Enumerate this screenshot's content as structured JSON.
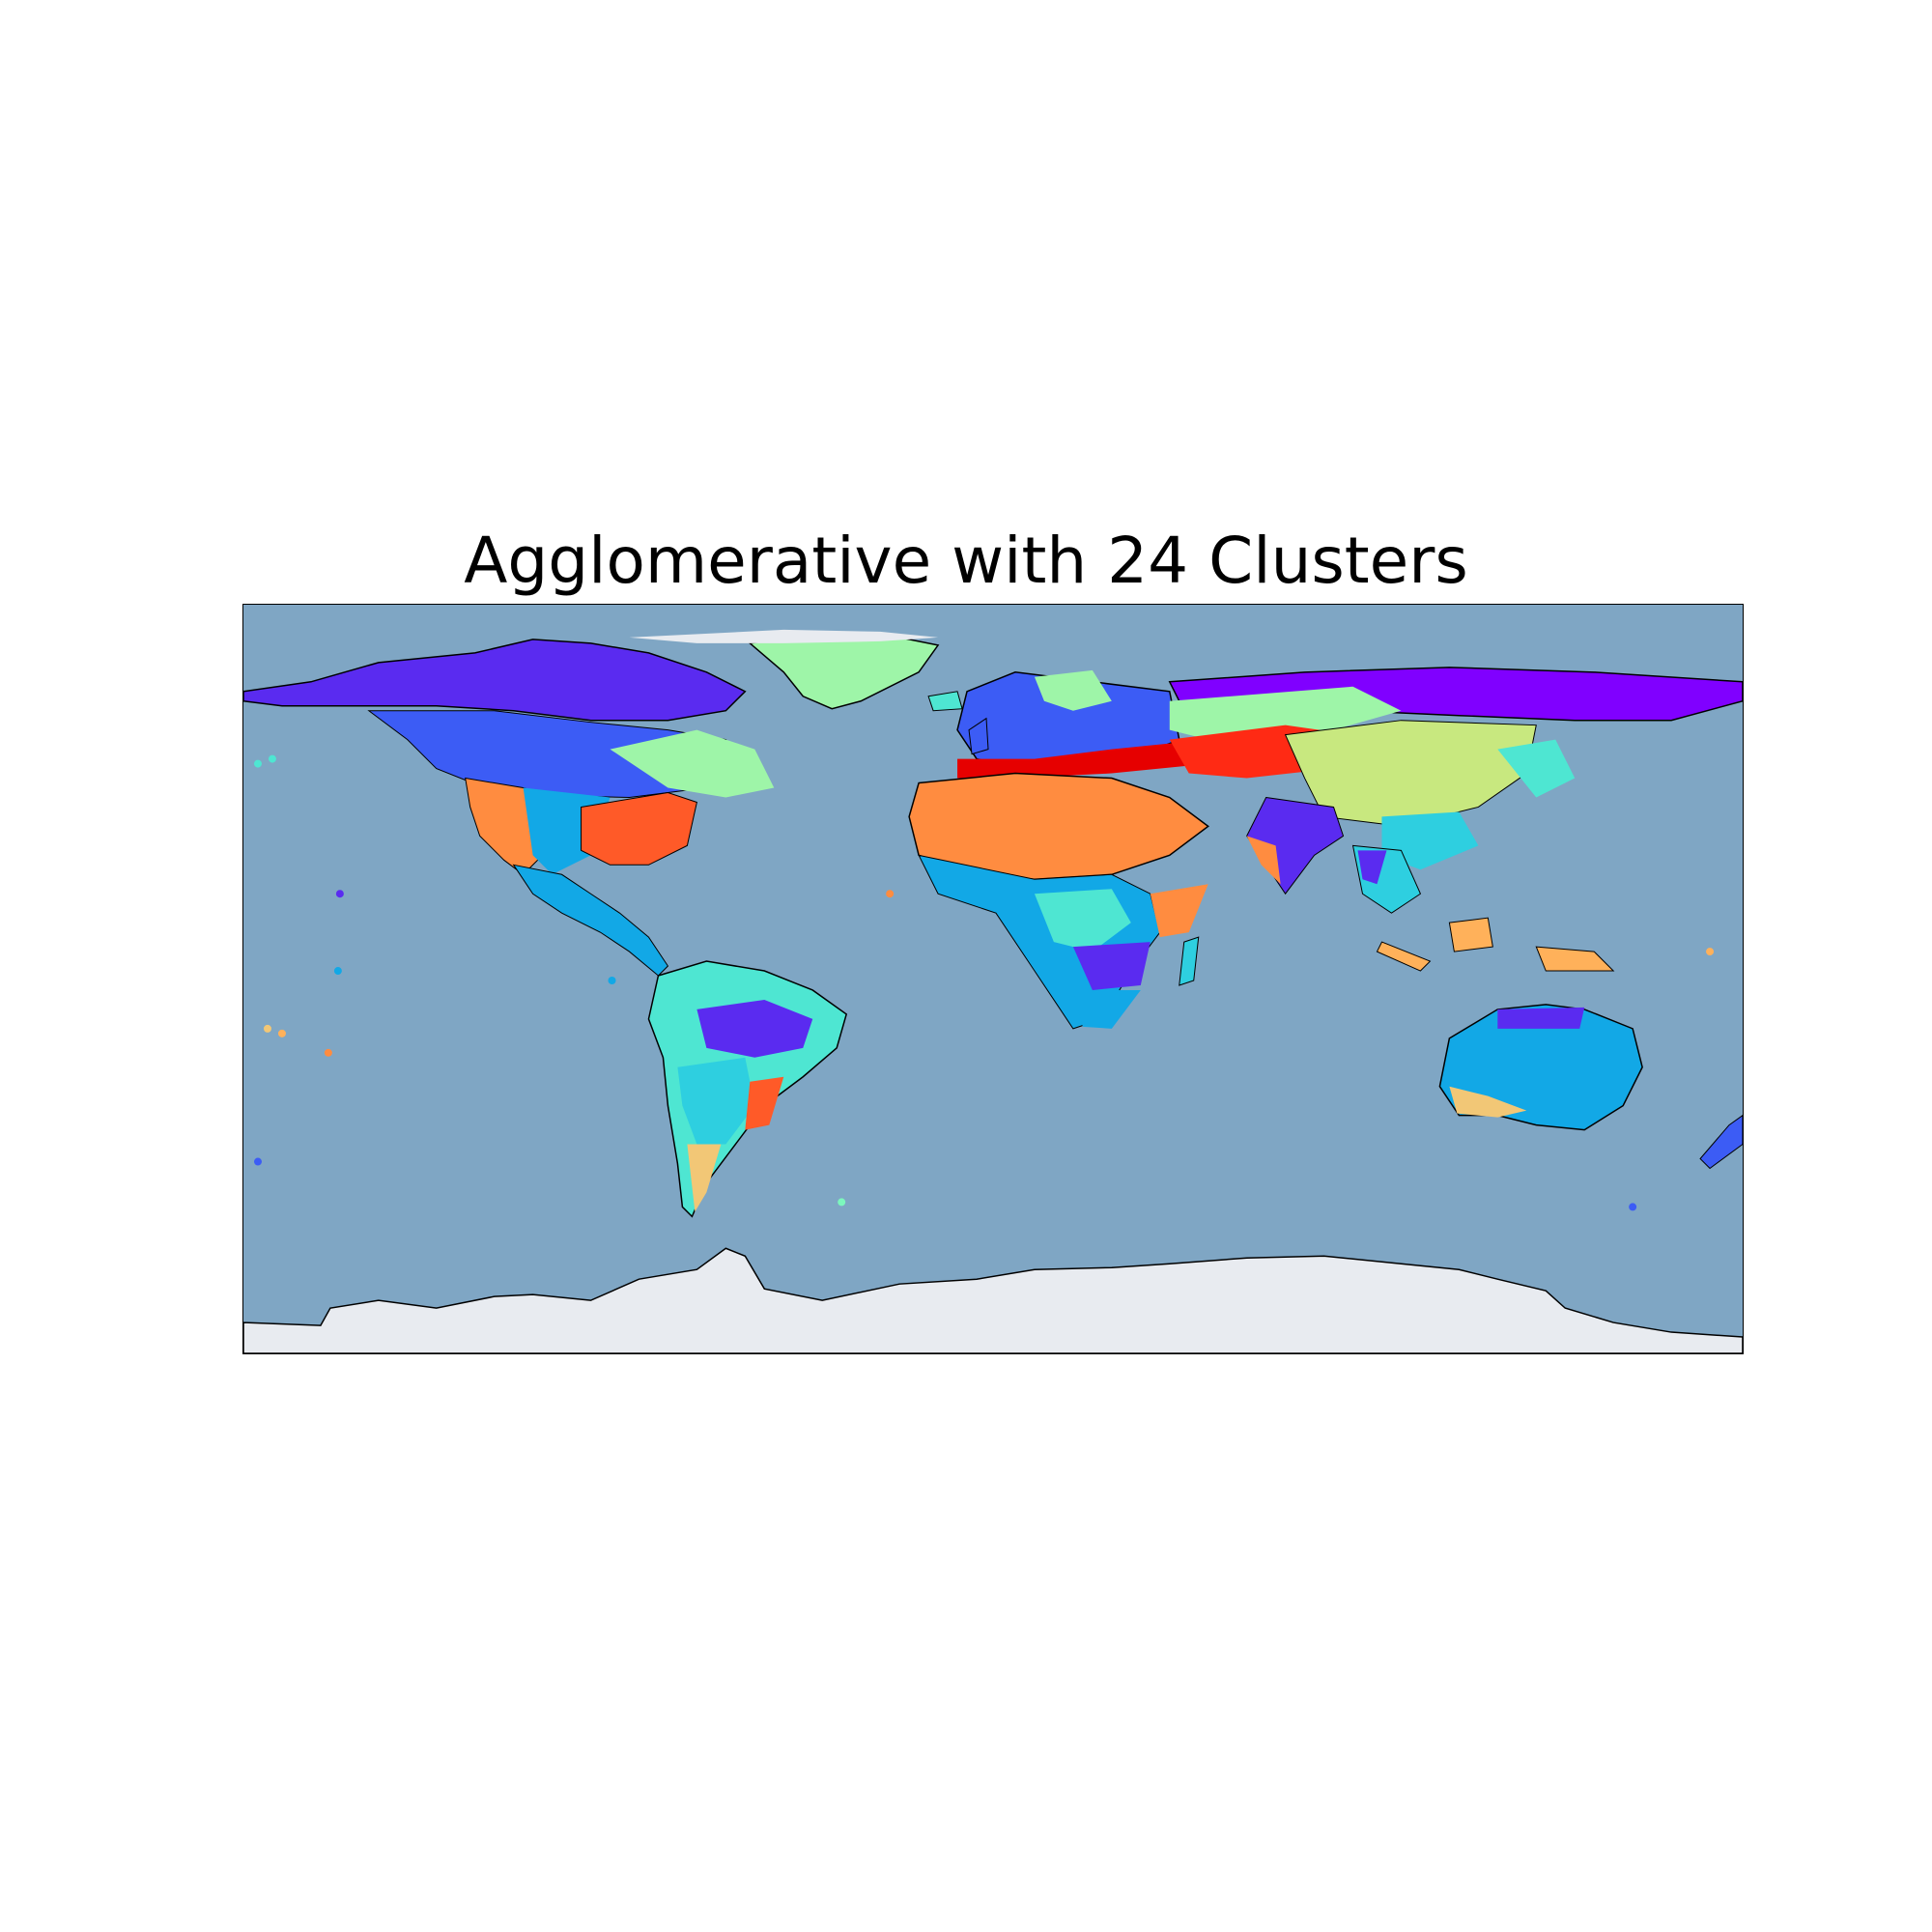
{
  "figure": {
    "title": "Agglomerative with 24 Clusters"
  },
  "map": {
    "projection": "PlateCarree",
    "extent_deg": {
      "lon": [
        -180,
        180
      ],
      "lat": [
        -90,
        90
      ]
    },
    "background": "stock relief image",
    "features": [
      "coastlines",
      "country borders (dotted)"
    ],
    "ocean_color": "#7fa6c4",
    "ice_color": "#e8ebf0",
    "n_clusters": 24,
    "cluster_palette": [
      "#8000ff",
      "#5a2bf0",
      "#3c5cf5",
      "#1e8cf0",
      "#12a8e6",
      "#2ecfe0",
      "#4ee6d2",
      "#7cf7bd",
      "#9ef5a8",
      "#c8e87f",
      "#f2c776",
      "#ffb15a",
      "#ff8c40",
      "#ff5a28",
      "#ff2a14",
      "#e60000"
    ],
    "regions": [
      {
        "name": "arctic-canada",
        "cluster_color": "#5a2bf0"
      },
      {
        "name": "boreal-canada",
        "cluster_color": "#3c5cf5"
      },
      {
        "name": "greenland",
        "cluster_color": "#9ef5a8"
      },
      {
        "name": "eastern-canada",
        "cluster_color": "#9ef5a8"
      },
      {
        "name": "us-east",
        "cluster_color": "#ff5a28"
      },
      {
        "name": "us-west",
        "cluster_color": "#ff8c40"
      },
      {
        "name": "mexico-central-america",
        "cluster_color": "#12a8e6"
      },
      {
        "name": "amazon",
        "cluster_color": "#4ee6d2"
      },
      {
        "name": "brazil-highlands",
        "cluster_color": "#5a2bf0"
      },
      {
        "name": "south-america-south",
        "cluster_color": "#2ecfe0"
      },
      {
        "name": "patagonia",
        "cluster_color": "#f2c776"
      },
      {
        "name": "europe",
        "cluster_color": "#3c5cf5"
      },
      {
        "name": "mediterranean",
        "cluster_color": "#e60000"
      },
      {
        "name": "sahara-arabia",
        "cluster_color": "#ff8c40"
      },
      {
        "name": "sahel",
        "cluster_color": "#12a8e6"
      },
      {
        "name": "central-africa",
        "cluster_color": "#4ee6d2"
      },
      {
        "name": "southern-africa",
        "cluster_color": "#12a8e6"
      },
      {
        "name": "kazakh-steppe",
        "cluster_color": "#ff2a14"
      },
      {
        "name": "siberia",
        "cluster_color": "#8000ff"
      },
      {
        "name": "mongolia-china",
        "cluster_color": "#c8e87f"
      },
      {
        "name": "india",
        "cluster_color": "#5a2bf0"
      },
      {
        "name": "southeast-asia",
        "cluster_color": "#2ecfe0"
      },
      {
        "name": "indonesia",
        "cluster_color": "#ffb15a"
      },
      {
        "name": "australia-interior",
        "cluster_color": "#12a8e6"
      },
      {
        "name": "australia-coast",
        "cluster_color": "#f2c776"
      },
      {
        "name": "new-zealand",
        "cluster_color": "#3c5cf5"
      }
    ]
  }
}
